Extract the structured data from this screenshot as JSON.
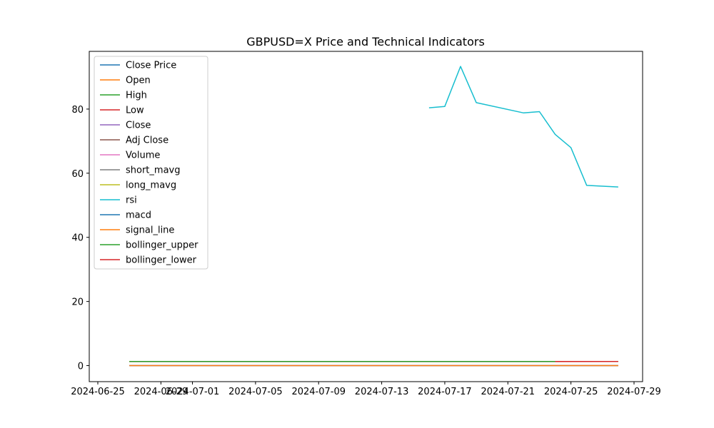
{
  "chart_data": {
    "type": "line",
    "title": "GBPUSD=X Price and Technical Indicators",
    "xlabel": "",
    "ylabel": "",
    "x_axis_type": "date",
    "xlim": [
      "2024-06-25",
      "2024-07-29"
    ],
    "ylim": [
      -5,
      98
    ],
    "x_tick_labels": [
      "2024-06-25",
      "2024-06-29",
      "2024-07-01",
      "2024-07-05",
      "2024-07-09",
      "2024-07-13",
      "2024-07-17",
      "2024-07-21",
      "2024-07-25",
      "2024-07-29"
    ],
    "y_tick_labels": [
      "0",
      "20",
      "40",
      "60",
      "80"
    ],
    "y_ticks": [
      0,
      20,
      40,
      60,
      80
    ],
    "grid": false,
    "legend_position": "top-left",
    "dates": [
      "2024-06-27",
      "2024-07-16",
      "2024-07-17",
      "2024-07-18",
      "2024-07-19",
      "2024-07-22",
      "2024-07-23",
      "2024-07-24",
      "2024-07-25",
      "2024-07-26",
      "2024-07-28"
    ],
    "series": [
      {
        "name": "Close Price",
        "color": "#1f77b4",
        "x": [
          "2024-06-27",
          "2024-07-28"
        ],
        "values": [
          1.27,
          1.28
        ]
      },
      {
        "name": "Open",
        "color": "#ff7f0e",
        "x": [
          "2024-06-27",
          "2024-07-28"
        ],
        "values": [
          1.27,
          1.28
        ]
      },
      {
        "name": "High",
        "color": "#2ca02c",
        "x": [
          "2024-06-27",
          "2024-07-28"
        ],
        "values": [
          1.28,
          1.29
        ]
      },
      {
        "name": "Low",
        "color": "#d62728",
        "x": [
          "2024-06-27",
          "2024-07-28"
        ],
        "values": [
          1.26,
          1.28
        ]
      },
      {
        "name": "Close",
        "color": "#9467bd",
        "x": [
          "2024-06-27",
          "2024-07-28"
        ],
        "values": [
          1.27,
          1.28
        ]
      },
      {
        "name": "Adj Close",
        "color": "#8c564b",
        "x": [
          "2024-06-27",
          "2024-07-28"
        ],
        "values": [
          1.27,
          1.28
        ]
      },
      {
        "name": "Volume",
        "color": "#e377c2",
        "x": [
          "2024-06-27",
          "2024-07-28"
        ],
        "values": [
          0,
          0
        ]
      },
      {
        "name": "short_mavg",
        "color": "#7f7f7f",
        "x": [
          "2024-06-27",
          "2024-07-28"
        ],
        "values": [
          1.27,
          1.28
        ]
      },
      {
        "name": "long_mavg",
        "color": "#bcbd22",
        "x": [
          "2024-06-27",
          "2024-07-28"
        ],
        "values": [
          1.27,
          1.28
        ]
      },
      {
        "name": "rsi",
        "color": "#17becf",
        "x": [
          "2024-07-16",
          "2024-07-17",
          "2024-07-18",
          "2024-07-19",
          "2024-07-22",
          "2024-07-23",
          "2024-07-24",
          "2024-07-25",
          "2024-07-26",
          "2024-07-28"
        ],
        "values": [
          80.4,
          80.8,
          93.3,
          82.0,
          78.8,
          79.2,
          72.1,
          68.0,
          56.2,
          55.7
        ]
      },
      {
        "name": "macd",
        "color": "#1f77b4",
        "x": [
          "2024-06-27",
          "2024-07-28"
        ],
        "values": [
          0.0,
          0.0
        ]
      },
      {
        "name": "signal_line",
        "color": "#ff7f0e",
        "x": [
          "2024-06-27",
          "2024-07-28"
        ],
        "values": [
          0.0,
          0.0
        ]
      },
      {
        "name": "bollinger_upper",
        "color": "#2ca02c",
        "x": [
          "2024-06-27",
          "2024-07-24",
          "2024-07-28"
        ],
        "values": [
          1.29,
          1.29,
          1.3
        ]
      },
      {
        "name": "bollinger_lower",
        "color": "#d62728",
        "x": [
          "2024-07-24",
          "2024-07-28"
        ],
        "values": [
          1.28,
          1.28
        ]
      }
    ]
  }
}
